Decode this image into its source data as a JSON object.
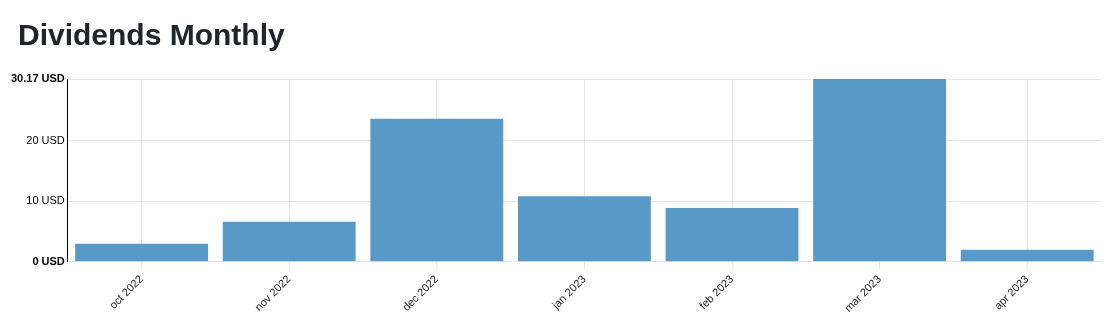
{
  "chart_data": {
    "type": "bar",
    "title": "Dividends Monthly",
    "categories": [
      "oct 2022",
      "nov 2022",
      "dec 2022",
      "jan 2023",
      "feb 2023",
      "mar 2023",
      "apr 2023"
    ],
    "values": [
      3.0,
      6.6,
      23.6,
      10.8,
      8.9,
      30.17,
      2.0
    ],
    "color": "#5899c8",
    "ylim": [
      0,
      30.17
    ],
    "yticks": [
      {
        "value": 0,
        "label": "0 USD"
      },
      {
        "value": 10,
        "label": "10 USD"
      },
      {
        "value": 20,
        "label": "20 USD"
      },
      {
        "value": 30.17,
        "label": "30.17 USD"
      }
    ],
    "grid": true
  }
}
